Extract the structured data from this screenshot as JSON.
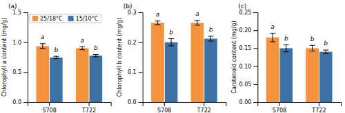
{
  "chart_data": [
    {
      "type": "bar",
      "title": "(a)",
      "ylabel": "Chlorophyll a content (mg/g)",
      "categories": [
        "S708",
        "T722"
      ],
      "series": [
        {
          "name": "25/18°C",
          "color": "#F5923E",
          "values": [
            0.935,
            0.9
          ],
          "errors": [
            0.04,
            0.025
          ],
          "annotations": [
            "a",
            "a"
          ]
        },
        {
          "name": "15/10°C",
          "color": "#3D72A4",
          "values": [
            0.745,
            0.775
          ],
          "errors": [
            0.02,
            0.02
          ],
          "annotations": [
            "b",
            "b"
          ]
        }
      ],
      "ylim": [
        0,
        1.5
      ],
      "yticks": [
        {
          "value": 0.0,
          "label": "0.0"
        },
        0.5,
        {
          "value": 1.0,
          "label": "1.0"
        },
        1.5
      ],
      "grid": false,
      "legend": "upper left"
    },
    {
      "type": "bar",
      "title": "(b)",
      "ylabel": "Chlorophyll b content (mg/g)",
      "categories": [
        "S708",
        "T722"
      ],
      "series": [
        {
          "color": "#F5923E",
          "values": [
            0.265,
            0.265
          ],
          "errors": [
            0.006,
            0.008
          ],
          "annotations": [
            "a",
            "a"
          ]
        },
        {
          "color": "#3D72A4",
          "values": [
            0.2,
            0.212
          ],
          "errors": [
            0.012,
            0.008
          ],
          "annotations": [
            "b",
            "b"
          ]
        }
      ],
      "ylim": [
        0,
        0.3
      ],
      "yticks": [
        {
          "value": 0.0,
          "label": "0.0"
        },
        0.1,
        0.2,
        0.3
      ],
      "grid": false
    },
    {
      "type": "bar",
      "title": "(c)",
      "ylabel": "Carotenoid content (mg/g)",
      "categories": [
        "S708",
        "T722"
      ],
      "series": [
        {
          "color": "#F5923E",
          "values": [
            0.18,
            0.15
          ],
          "errors": [
            0.012,
            0.008
          ],
          "annotations": [
            "a",
            "b"
          ]
        },
        {
          "color": "#3D72A4",
          "values": [
            0.15,
            0.14
          ],
          "errors": [
            0.01,
            0.005
          ],
          "annotations": [
            "b",
            "b"
          ]
        }
      ],
      "ylim": [
        0,
        0.25
      ],
      "yticks": [
        {
          "value": 0.0,
          "label": "0.00"
        },
        0.05,
        {
          "value": 0.1,
          "label": "0.10"
        },
        0.15,
        {
          "value": 0.2,
          "label": "0.20"
        },
        0.25
      ],
      "grid": false
    }
  ]
}
